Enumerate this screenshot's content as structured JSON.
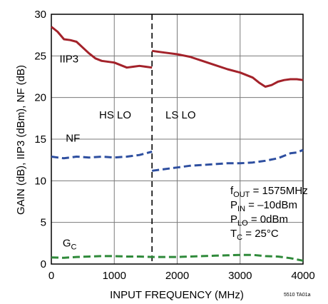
{
  "chart_data": {
    "type": "line",
    "xlabel": "INPUT FREQUENCY (MHz)",
    "ylabel": "GAIN (dB), IIP3 (dBm), NF (dB)",
    "xlim": [
      0,
      4000
    ],
    "ylim": [
      0,
      30
    ],
    "x_ticks": [
      "0",
      "1000",
      "2000",
      "3000",
      "4000"
    ],
    "y_ticks": [
      "0",
      "5",
      "10",
      "15",
      "20",
      "25",
      "30"
    ],
    "grid": true,
    "divider_x": 1600,
    "region_labels": {
      "left": "HS LO",
      "right": "LS LO"
    },
    "figure_tag": "5510 TA01a",
    "conditions": [
      {
        "main": "f",
        "sub": "OUT",
        "rest": " = 1575MHz"
      },
      {
        "main": "P",
        "sub": "IN",
        "rest": " = –10dBm"
      },
      {
        "main": "P",
        "sub": "LO",
        "rest": " = 0dBm"
      },
      {
        "main": "T",
        "sub": "C",
        "rest": " = 25°C"
      }
    ],
    "series": [
      {
        "name": "IIP3",
        "color": "#a3222a",
        "style": "solid",
        "segments": [
          [
            [
              0,
              28.5
            ],
            [
              100,
              27.9
            ],
            [
              200,
              27.0
            ],
            [
              300,
              26.9
            ],
            [
              400,
              26.7
            ],
            [
              500,
              26.0
            ],
            [
              600,
              25.3
            ],
            [
              700,
              24.7
            ],
            [
              800,
              24.4
            ],
            [
              1000,
              24.2
            ],
            [
              1100,
              23.9
            ],
            [
              1200,
              23.6
            ],
            [
              1300,
              23.7
            ],
            [
              1400,
              23.8
            ],
            [
              1500,
              23.7
            ],
            [
              1600,
              23.6
            ]
          ],
          [
            [
              1600,
              25.6
            ],
            [
              1800,
              25.4
            ],
            [
              2000,
              25.2
            ],
            [
              2200,
              24.9
            ],
            [
              2400,
              24.4
            ],
            [
              2600,
              23.9
            ],
            [
              2800,
              23.4
            ],
            [
              3000,
              23.0
            ],
            [
              3200,
              22.4
            ],
            [
              3300,
              21.8
            ],
            [
              3400,
              21.3
            ],
            [
              3500,
              21.5
            ],
            [
              3600,
              21.9
            ],
            [
              3700,
              22.1
            ],
            [
              3800,
              22.2
            ],
            [
              3900,
              22.2
            ],
            [
              4000,
              22.1
            ]
          ]
        ]
      },
      {
        "name": "NF",
        "color": "#2e4fa0",
        "style": "dashed",
        "segments": [
          [
            [
              0,
              12.9
            ],
            [
              100,
              12.8
            ],
            [
              200,
              12.7
            ],
            [
              300,
              12.8
            ],
            [
              400,
              12.9
            ],
            [
              600,
              12.8
            ],
            [
              800,
              12.9
            ],
            [
              1000,
              12.8
            ],
            [
              1200,
              12.9
            ],
            [
              1400,
              13.1
            ],
            [
              1600,
              13.5
            ]
          ],
          [
            [
              1600,
              11.2
            ],
            [
              1800,
              11.4
            ],
            [
              2000,
              11.6
            ],
            [
              2200,
              11.8
            ],
            [
              2400,
              11.9
            ],
            [
              2600,
              12.0
            ],
            [
              2800,
              12.1
            ],
            [
              3000,
              12.1
            ],
            [
              3200,
              12.2
            ],
            [
              3400,
              12.4
            ],
            [
              3600,
              12.7
            ],
            [
              3800,
              13.3
            ],
            [
              3900,
              13.4
            ],
            [
              4000,
              13.7
            ]
          ]
        ]
      },
      {
        "name": "G",
        "name_sub": "C",
        "color": "#2f8a3a",
        "style": "dashed",
        "segments": [
          [
            [
              0,
              0.8
            ],
            [
              200,
              0.75
            ],
            [
              400,
              0.85
            ],
            [
              600,
              0.9
            ],
            [
              800,
              0.95
            ],
            [
              1000,
              0.95
            ],
            [
              1200,
              0.9
            ],
            [
              1400,
              0.9
            ],
            [
              1600,
              0.85
            ],
            [
              1800,
              0.85
            ],
            [
              2000,
              0.85
            ],
            [
              2200,
              0.9
            ],
            [
              2400,
              0.95
            ],
            [
              2600,
              1.0
            ],
            [
              2800,
              1.05
            ],
            [
              3000,
              1.1
            ],
            [
              3200,
              1.1
            ],
            [
              3400,
              0.95
            ],
            [
              3600,
              0.9
            ],
            [
              3800,
              0.7
            ],
            [
              4000,
              0.4
            ]
          ]
        ]
      }
    ],
    "series_labels": [
      {
        "series": "IIP3",
        "x": 130,
        "y": 24.2
      },
      {
        "series": "NF",
        "x": 230,
        "y": 14.7
      },
      {
        "series": "G",
        "x": 180,
        "y": 2.1
      }
    ]
  }
}
